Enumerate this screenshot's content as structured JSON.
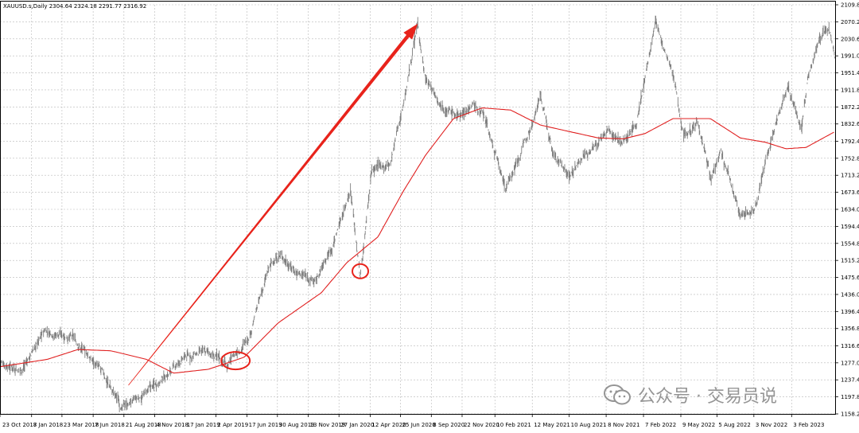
{
  "window": {
    "header": "XAUUSD.s,Daily  2304.64 2324.18 2291.77 2316.92"
  },
  "watermark": {
    "text": "公众号 · 交易员说"
  },
  "colors": {
    "price_bar": "#7d7d7d",
    "moving_average": "#e02020",
    "annotation": "#e8231b",
    "grid": "#b8b8b8",
    "axis_text": "#000000"
  },
  "chart_data": {
    "type": "line",
    "title": "XAUUSD.s,Daily  2304.64 2324.18 2291.77 2316.92",
    "xlabel": "",
    "ylabel": "",
    "grid": true,
    "ylim": [
      1158.2,
      2109.8
    ],
    "y_ticks": [
      "2109.80",
      "2070.20",
      "2030.60",
      "1991.00",
      "1951.40",
      "1911.80",
      "1872.20",
      "1832.60",
      "1792.40",
      "1752.80",
      "1713.20",
      "1673.60",
      "1634.00",
      "1594.40",
      "1554.80",
      "1515.20",
      "1475.60",
      "1436.00",
      "1396.40",
      "1356.80",
      "1316.60",
      "1277.00",
      "1237.40",
      "1197.80",
      "1158.20"
    ],
    "x_ticks": [
      "23 Oct 2017",
      "8 Jan 2018",
      "23 Mar 2018",
      "7 Jun 2018",
      "21 Aug 2018",
      "4 Nov 2018",
      "17 Jan 2019",
      "2 Apr 2019",
      "17 Jun 2019",
      "30 Aug 2019",
      "13 Nov 2019",
      "27 Jan 2020",
      "12 Apr 2020",
      "25 Jun 2020",
      "8 Sep 2020",
      "22 Nov 2020",
      "10 Feb 2021",
      "12 May 2021",
      "10 Aug 2021",
      "8 Nov 2021",
      "7 Feb 2022",
      "9 May 2022",
      "5 Aug 2022",
      "3 Nov 2022",
      "3 Feb 2023"
    ],
    "series": [
      {
        "kind": "price",
        "x": [
          "2017-10-23",
          "2017-12-15",
          "2018-02-10",
          "2018-04-15",
          "2018-06-20",
          "2018-08-16",
          "2018-09-25",
          "2018-11-10",
          "2019-01-20",
          "2019-03-15",
          "2019-05-01",
          "2019-06-20",
          "2019-08-10",
          "2019-09-05",
          "2019-10-15",
          "2019-12-01",
          "2020-01-15",
          "2020-02-24",
          "2020-03-19",
          "2020-04-15",
          "2020-06-01",
          "2020-07-10",
          "2020-08-06",
          "2020-08-25",
          "2020-09-30",
          "2020-11-10",
          "2020-12-20",
          "2021-01-15",
          "2021-03-08",
          "2021-04-20",
          "2021-06-01",
          "2021-06-30",
          "2021-08-09",
          "2021-09-20",
          "2021-11-16",
          "2021-12-15",
          "2022-01-20",
          "2022-03-08",
          "2022-04-18",
          "2022-05-16",
          "2022-06-20",
          "2022-07-21",
          "2022-08-15",
          "2022-09-28",
          "2022-11-03",
          "2022-12-20",
          "2023-01-25",
          "2023-02-28",
          "2023-03-15",
          "2023-04-13",
          "2023-05-04",
          "2023-05-20"
        ],
        "values": [
          1278,
          1262,
          1352,
          1338,
          1266,
          1175,
          1192,
          1230,
          1292,
          1300,
          1275,
          1335,
          1498,
          1530,
          1490,
          1465,
          1560,
          1685,
          1472,
          1725,
          1740,
          1920,
          2066,
          1935,
          1885,
          1850,
          1880,
          1845,
          1683,
          1780,
          1900,
          1765,
          1715,
          1760,
          1820,
          1790,
          1830,
          2066,
          1950,
          1810,
          1840,
          1700,
          1780,
          1625,
          1628,
          1812,
          1920,
          1820,
          1950,
          2030,
          2050,
          1990
        ]
      },
      {
        "kind": "moving_average",
        "x": [
          "2017-10-23",
          "2018-02-15",
          "2018-05-01",
          "2018-07-20",
          "2018-10-15",
          "2018-12-20",
          "2019-03-15",
          "2019-06-10",
          "2019-09-01",
          "2019-12-15",
          "2020-02-15",
          "2020-05-01",
          "2020-07-01",
          "2020-08-25",
          "2020-11-01",
          "2021-01-10",
          "2021-03-20",
          "2021-06-01",
          "2021-08-10",
          "2021-10-20",
          "2021-12-20",
          "2022-02-10",
          "2022-04-20",
          "2022-07-20",
          "2022-10-01",
          "2022-12-01",
          "2023-01-20",
          "2023-03-10",
          "2023-05-20"
        ],
        "values": [
          1268,
          1285,
          1308,
          1305,
          1285,
          1253,
          1262,
          1290,
          1370,
          1440,
          1510,
          1570,
          1675,
          1760,
          1845,
          1870,
          1865,
          1830,
          1815,
          1800,
          1798,
          1810,
          1845,
          1845,
          1800,
          1790,
          1775,
          1778,
          1815
        ]
      }
    ],
    "annotations": [
      {
        "type": "arrow",
        "from_date": "2018-09-01",
        "from_value": 1225,
        "to_date": "2020-08-06",
        "to_value": 2066
      },
      {
        "type": "ellipse",
        "date": "2019-05-20",
        "value": 1282
      },
      {
        "type": "ellipse",
        "date": "2020-03-19",
        "value": 1490
      }
    ]
  }
}
